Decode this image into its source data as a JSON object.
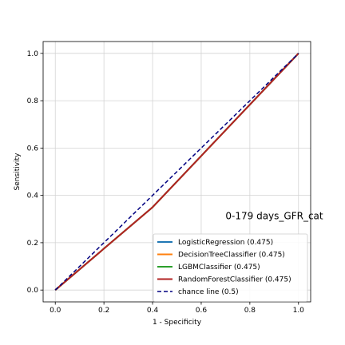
{
  "chart_data": {
    "type": "line",
    "title": "",
    "xlabel": "1 - Specificity",
    "ylabel": "Sensitivity",
    "xlim": [
      -0.05,
      1.05
    ],
    "ylim": [
      -0.05,
      1.05
    ],
    "xticks": [
      0.0,
      0.2,
      0.4,
      0.6,
      0.8,
      1.0
    ],
    "yticks": [
      0.0,
      0.2,
      0.4,
      0.6,
      0.8,
      1.0
    ],
    "xtick_labels": [
      "0.0",
      "0.2",
      "0.4",
      "0.6",
      "0.8",
      "1.0"
    ],
    "ytick_labels": [
      "0.0",
      "0.2",
      "0.4",
      "0.6",
      "0.8",
      "1.0"
    ],
    "grid": true,
    "legend_position": "bottom-right",
    "annotation": {
      "text": "0-179 days_GFR_cat",
      "x": 0.7,
      "y": 0.3
    },
    "series": [
      {
        "name": "LogisticRegression (0.475)",
        "color": "#1f77b4",
        "dash": "solid",
        "x": [
          0.0,
          0.4,
          1.0
        ],
        "y": [
          0.0,
          0.35,
          1.0
        ]
      },
      {
        "name": "DecisionTreeClassifier (0.475)",
        "color": "#ff7f0e",
        "dash": "solid",
        "x": [
          0.0,
          0.4,
          1.0
        ],
        "y": [
          0.0,
          0.35,
          1.0
        ]
      },
      {
        "name": "LGBMClassifier (0.475)",
        "color": "#2ca02c",
        "dash": "solid",
        "x": [
          0.0,
          0.4,
          1.0
        ],
        "y": [
          0.0,
          0.35,
          1.0
        ]
      },
      {
        "name": "RandomForestClassifier (0.475)",
        "color": "#b22222",
        "dash": "solid",
        "x": [
          0.0,
          0.4,
          1.0
        ],
        "y": [
          0.0,
          0.35,
          1.0
        ]
      },
      {
        "name": "chance line (0.5)",
        "color": "#000080",
        "dash": "dashed",
        "x": [
          0.0,
          1.0
        ],
        "y": [
          0.0,
          1.0
        ]
      }
    ]
  }
}
